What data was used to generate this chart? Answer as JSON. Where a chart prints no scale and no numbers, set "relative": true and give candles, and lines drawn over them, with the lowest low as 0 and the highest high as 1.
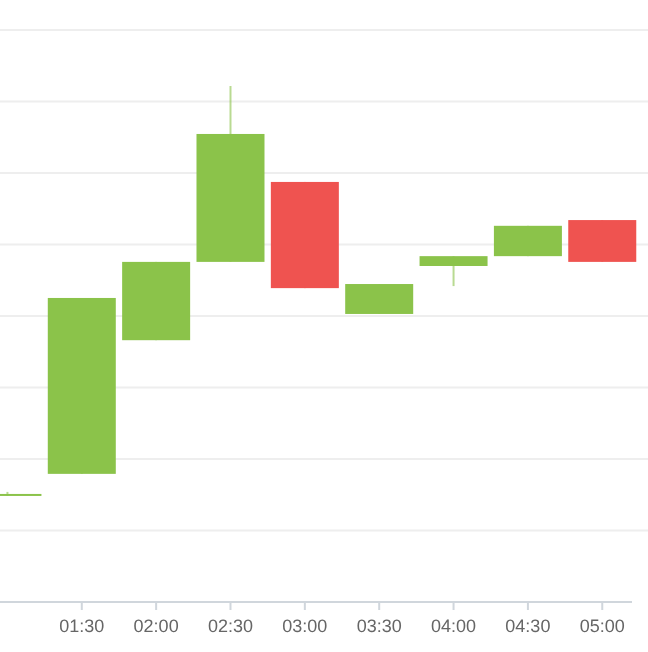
{
  "chart_data": {
    "type": "candlestick",
    "relative": true,
    "grid": "y",
    "x": [
      1.0,
      1.5,
      2.0,
      2.5,
      3.0,
      3.5,
      4.0,
      4.5,
      5.0
    ],
    "ohlc": [
      [
        0.005,
        0.01,
        0,
        0.005
      ],
      [
        0.054,
        0.483,
        0.054,
        0.483
      ],
      [
        0.38,
        0.571,
        0.38,
        0.571
      ],
      [
        0.571,
        1,
        0.571,
        0.883
      ],
      [
        0.766,
        0.766,
        0.507,
        0.507
      ],
      [
        0.444,
        0.517,
        0.444,
        0.517
      ],
      [
        0.561,
        0.585,
        0.512,
        0.585
      ],
      [
        0.585,
        0.659,
        0.585,
        0.659
      ],
      [
        0.673,
        0.673,
        0.571,
        0.571
      ]
    ],
    "colors": [
      "#8bc34a",
      "#8bc34a",
      "#8bc34a",
      "#8bc34a",
      "#ef5350",
      "#8bc34a",
      "#8bc34a",
      "#8bc34a",
      "#ef5350"
    ],
    "xlim": [
      0.95,
      5.2
    ],
    "xticks": [
      {
        "value": 1.5,
        "label": "01:30"
      },
      {
        "value": 2,
        "label": "02:00"
      },
      {
        "value": 2.5,
        "label": "02:30"
      },
      {
        "value": 3,
        "label": "03:00"
      },
      {
        "value": 3.5,
        "label": "03:30"
      },
      {
        "value": 4,
        "label": "04:00"
      },
      {
        "value": 4.5,
        "label": "04:30"
      },
      {
        "value": 5,
        "label": "05:00"
      }
    ]
  }
}
